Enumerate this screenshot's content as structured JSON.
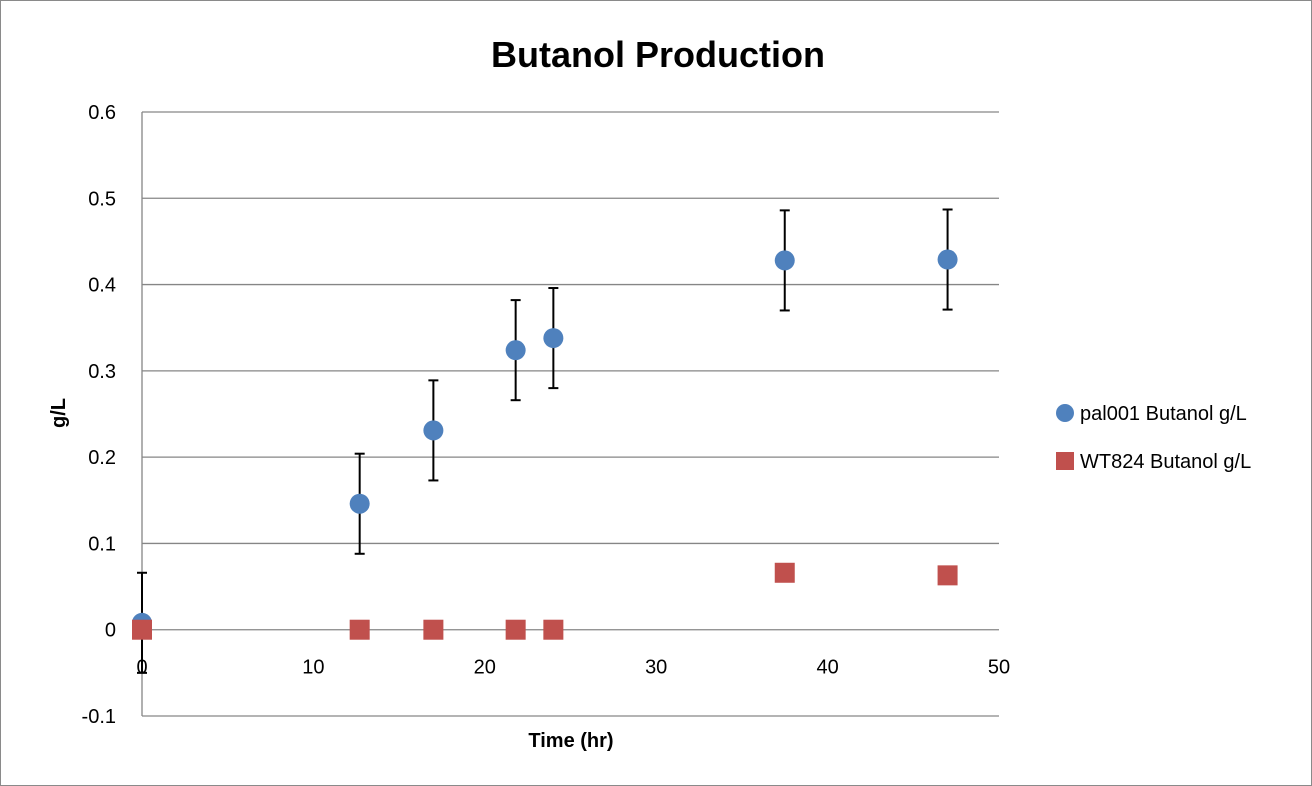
{
  "chart_data": {
    "type": "scatter",
    "title": "Butanol Production",
    "xlabel": "Time (hr)",
    "ylabel": "g/L",
    "xlim": [
      0,
      50
    ],
    "ylim": [
      -0.1,
      0.6
    ],
    "x_ticks": [
      0,
      10,
      20,
      30,
      40,
      50
    ],
    "y_ticks": [
      -0.1,
      0,
      0.1,
      0.2,
      0.3,
      0.4,
      0.5,
      0.6
    ],
    "grid": "horizontal major gridlines",
    "legend_position": "right",
    "series": [
      {
        "name": "pal001 Butanol g/L",
        "marker": "circle",
        "color": "#4F81BD",
        "x": [
          0,
          12.7,
          17,
          21.8,
          24,
          37.5,
          47
        ],
        "y": [
          0.008,
          0.146,
          0.231,
          0.324,
          0.338,
          0.428,
          0.429
        ],
        "error": [
          0.058,
          0.058,
          0.058,
          0.058,
          0.058,
          0.058,
          0.058
        ]
      },
      {
        "name": "WT824 Butanol g/L",
        "marker": "square",
        "color": "#C0504D",
        "x": [
          0,
          12.7,
          17,
          21.8,
          24,
          37.5,
          47
        ],
        "y": [
          0,
          0,
          0,
          0,
          0,
          0.066,
          0.063
        ],
        "error": [
          0.005,
          0.005,
          0.005,
          0.005,
          0.005,
          0.008,
          0.008
        ]
      }
    ]
  }
}
